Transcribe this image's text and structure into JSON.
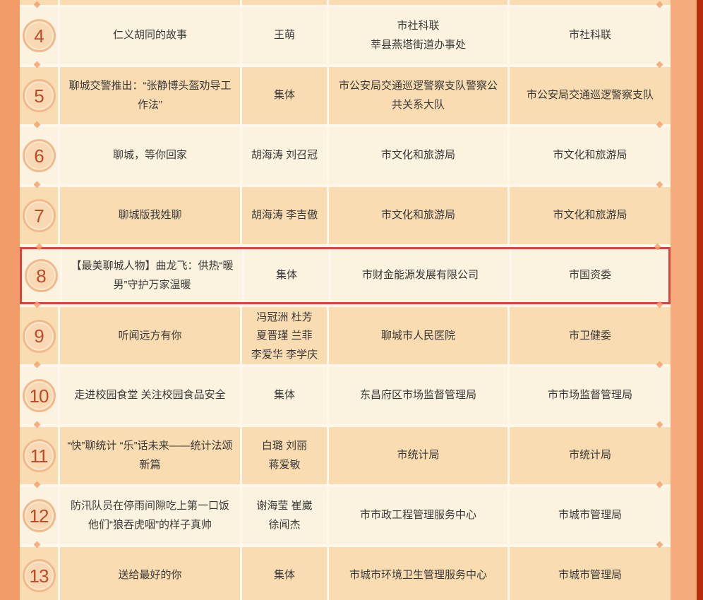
{
  "page": {
    "description": "awards-list-table-rows-4-to-13",
    "colors": {
      "side_strip_left": "#f29d69",
      "side_strip_right": "#f5ab7c",
      "edge_red": "#b72c0e",
      "row_cream": "#fbf3df",
      "row_peach": "#fadcb2",
      "gap": "#fdf8eb",
      "highlight_border": "#d9453c",
      "number_text": "#bb4b2b",
      "number_ring": "#f2ba8c",
      "body_text": "#3a3836"
    }
  },
  "table": {
    "rows": [
      {
        "num": "4",
        "title": "仁义胡同的故事",
        "author": "王萌",
        "org": "市社科联\n莘县燕塔街道办事处",
        "recommender": "市社科联",
        "highlighted": false
      },
      {
        "num": "5",
        "title": "聊城交警推出：“张静博头盔劝导工作法”",
        "author": "集体",
        "org": "市公安局交通巡逻警察支队警察公共关系大队",
        "recommender": "市公安局交通巡逻警察支队",
        "highlighted": false
      },
      {
        "num": "6",
        "title": "聊城，等你回家",
        "author": "胡海涛 刘召冠",
        "org": "市文化和旅游局",
        "recommender": "市文化和旅游局",
        "highlighted": false
      },
      {
        "num": "7",
        "title": "聊城版我姓聊",
        "author": "胡海涛 李吉傲",
        "org": "市文化和旅游局",
        "recommender": "市文化和旅游局",
        "highlighted": false
      },
      {
        "num": "8",
        "title": "【最美聊城人物】曲龙飞：供热“暖男”守护万家温暖",
        "author": "集体",
        "org": "市财金能源发展有限公司",
        "recommender": "市国资委",
        "highlighted": true
      },
      {
        "num": "9",
        "title": "听闻远方有你",
        "author": "冯冠洲 杜芳\n夏晋瑾 兰菲\n李爱华 李学庆",
        "org": "聊城市人民医院",
        "recommender": "市卫健委",
        "highlighted": false
      },
      {
        "num": "10",
        "title": "走进校园食堂 关注校园食品安全",
        "author": "集体",
        "org": "东昌府区市场监督管理局",
        "recommender": "市市场监督管理局",
        "highlighted": false
      },
      {
        "num": "11",
        "title": "“快”聊统计 “乐”话未来——统计法颂新篇",
        "author": "白璐 刘丽\n蒋爱敏",
        "org": "市统计局",
        "recommender": "市统计局",
        "highlighted": false
      },
      {
        "num": "12",
        "title": "防汛队员在停雨间隙吃上第一口饭 他们“狼吞虎咽”的样子真帅",
        "author": "谢海莹 崔崴\n徐闻杰",
        "org": "市市政工程管理服务中心",
        "recommender": "市城市管理局",
        "highlighted": false
      },
      {
        "num": "13",
        "title": "送给最好的你",
        "author": "集体",
        "org": "市城市环境卫生管理服务中心",
        "recommender": "市城市管理局",
        "highlighted": false
      }
    ]
  }
}
